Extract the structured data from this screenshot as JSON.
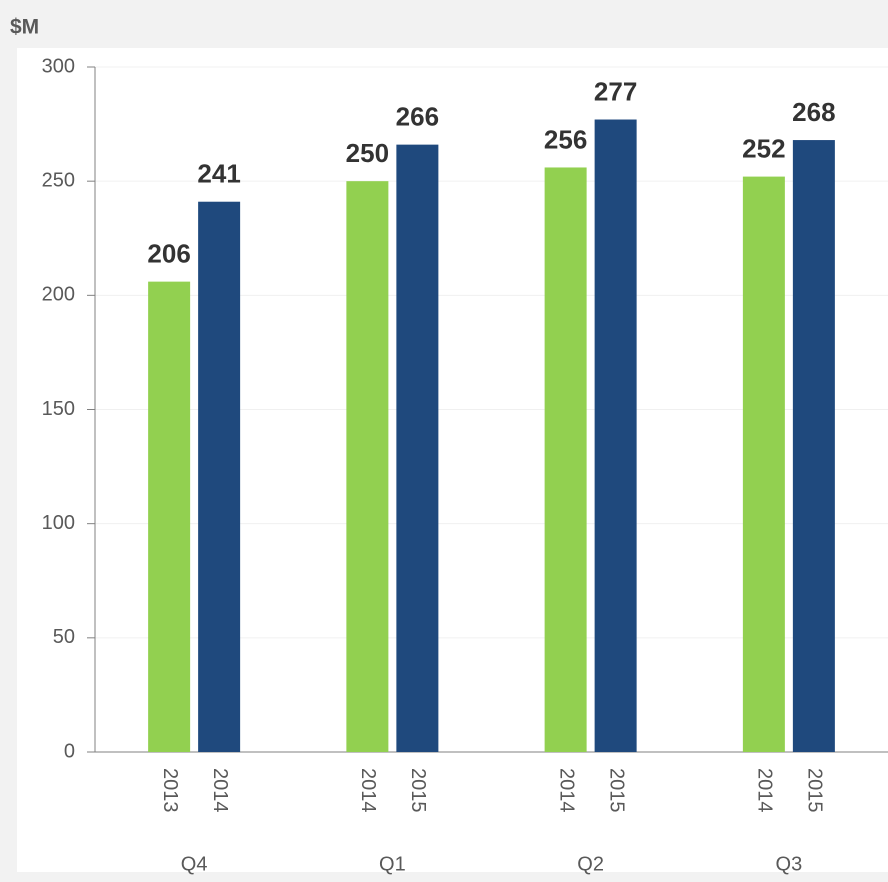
{
  "chart_data": {
    "type": "bar",
    "y_label": "$M",
    "categories": [
      "Q4",
      "Q1",
      "Q2",
      "Q3"
    ],
    "series": [
      {
        "color": "#92d050",
        "labels": [
          "2013",
          "2014",
          "2014",
          "2014"
        ],
        "values": [
          206,
          250,
          256,
          252
        ]
      },
      {
        "color": "#1f497d",
        "labels": [
          "2014",
          "2015",
          "2015",
          "2015"
        ],
        "values": [
          241,
          266,
          277,
          268
        ]
      }
    ],
    "ylim": [
      0,
      300
    ],
    "yticks": [
      0,
      50,
      100,
      150,
      200,
      250,
      300
    ],
    "grid": true
  }
}
